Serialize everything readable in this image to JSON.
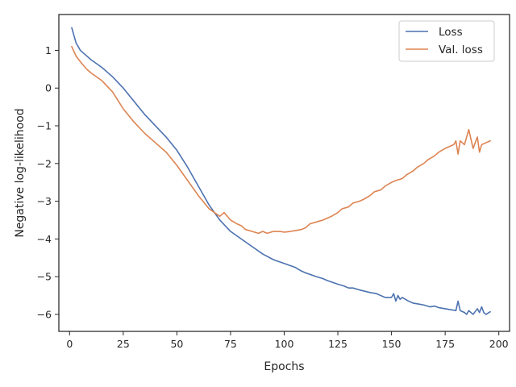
{
  "chart_data": {
    "type": "line",
    "title": "",
    "xlabel": "Epochs",
    "ylabel": "Negative log-likelihood",
    "xlim": [
      -5,
      205
    ],
    "ylim": [
      -6.45,
      1.95
    ],
    "xticks": [
      0,
      25,
      50,
      75,
      100,
      125,
      150,
      175,
      200
    ],
    "yticks": [
      1,
      0,
      -1,
      -2,
      -3,
      -4,
      -5,
      -6
    ],
    "xtick_labels": [
      "0",
      "25",
      "50",
      "75",
      "100",
      "125",
      "150",
      "175",
      "200"
    ],
    "ytick_labels": [
      "1",
      "0",
      "−1",
      "−2",
      "−3",
      "−4",
      "−5",
      "−6"
    ],
    "grid": false,
    "legend_position": "top-right",
    "series": [
      {
        "name": "Loss",
        "color": "#4c72b0",
        "x": [
          1,
          3,
          5,
          8,
          10,
          15,
          20,
          25,
          30,
          35,
          40,
          45,
          50,
          55,
          60,
          65,
          70,
          75,
          80,
          85,
          90,
          95,
          100,
          105,
          108,
          110,
          115,
          118,
          120,
          125,
          128,
          130,
          132,
          135,
          140,
          143,
          145,
          147,
          150,
          151,
          152,
          153,
          154,
          155,
          158,
          160,
          162,
          165,
          168,
          170,
          172,
          175,
          178,
          180,
          181,
          182,
          184,
          185,
          186,
          188,
          190,
          191,
          192,
          193,
          194,
          196
        ],
        "y": [
          1.6,
          1.2,
          1.0,
          0.85,
          0.75,
          0.55,
          0.3,
          0.0,
          -0.35,
          -0.7,
          -1.0,
          -1.3,
          -1.65,
          -2.1,
          -2.6,
          -3.1,
          -3.5,
          -3.8,
          -4.0,
          -4.2,
          -4.4,
          -4.55,
          -4.65,
          -4.75,
          -4.85,
          -4.9,
          -5.0,
          -5.05,
          -5.1,
          -5.2,
          -5.25,
          -5.3,
          -5.3,
          -5.35,
          -5.42,
          -5.45,
          -5.5,
          -5.55,
          -5.55,
          -5.45,
          -5.65,
          -5.5,
          -5.6,
          -5.55,
          -5.65,
          -5.7,
          -5.72,
          -5.75,
          -5.8,
          -5.78,
          -5.82,
          -5.85,
          -5.88,
          -5.9,
          -5.65,
          -5.9,
          -5.95,
          -6.0,
          -5.9,
          -6.0,
          -5.85,
          -5.95,
          -5.8,
          -5.95,
          -6.0,
          -5.93
        ]
      },
      {
        "name": "Val. loss",
        "color": "#dd8452",
        "x": [
          1,
          3,
          5,
          8,
          10,
          15,
          20,
          25,
          30,
          35,
          40,
          45,
          50,
          55,
          60,
          65,
          70,
          72,
          75,
          78,
          80,
          82,
          85,
          88,
          90,
          92,
          95,
          98,
          100,
          103,
          105,
          108,
          110,
          112,
          115,
          118,
          120,
          122,
          125,
          127,
          130,
          132,
          135,
          137,
          140,
          142,
          145,
          147,
          150,
          152,
          155,
          157,
          160,
          162,
          165,
          167,
          170,
          172,
          175,
          177,
          179,
          180,
          181,
          182,
          184,
          186,
          188,
          190,
          191,
          192,
          194,
          196
        ],
        "y": [
          1.1,
          0.85,
          0.7,
          0.5,
          0.4,
          0.2,
          -0.1,
          -0.55,
          -0.9,
          -1.2,
          -1.45,
          -1.7,
          -2.05,
          -2.45,
          -2.85,
          -3.2,
          -3.4,
          -3.3,
          -3.5,
          -3.6,
          -3.65,
          -3.75,
          -3.8,
          -3.85,
          -3.8,
          -3.85,
          -3.8,
          -3.8,
          -3.82,
          -3.8,
          -3.78,
          -3.75,
          -3.7,
          -3.6,
          -3.55,
          -3.5,
          -3.45,
          -3.4,
          -3.3,
          -3.2,
          -3.15,
          -3.05,
          -3.0,
          -2.95,
          -2.85,
          -2.75,
          -2.7,
          -2.6,
          -2.5,
          -2.45,
          -2.4,
          -2.3,
          -2.2,
          -2.1,
          -2.0,
          -1.9,
          -1.8,
          -1.7,
          -1.6,
          -1.55,
          -1.5,
          -1.4,
          -1.75,
          -1.4,
          -1.5,
          -1.1,
          -1.6,
          -1.3,
          -1.7,
          -1.5,
          -1.45,
          -1.4
        ]
      }
    ]
  }
}
